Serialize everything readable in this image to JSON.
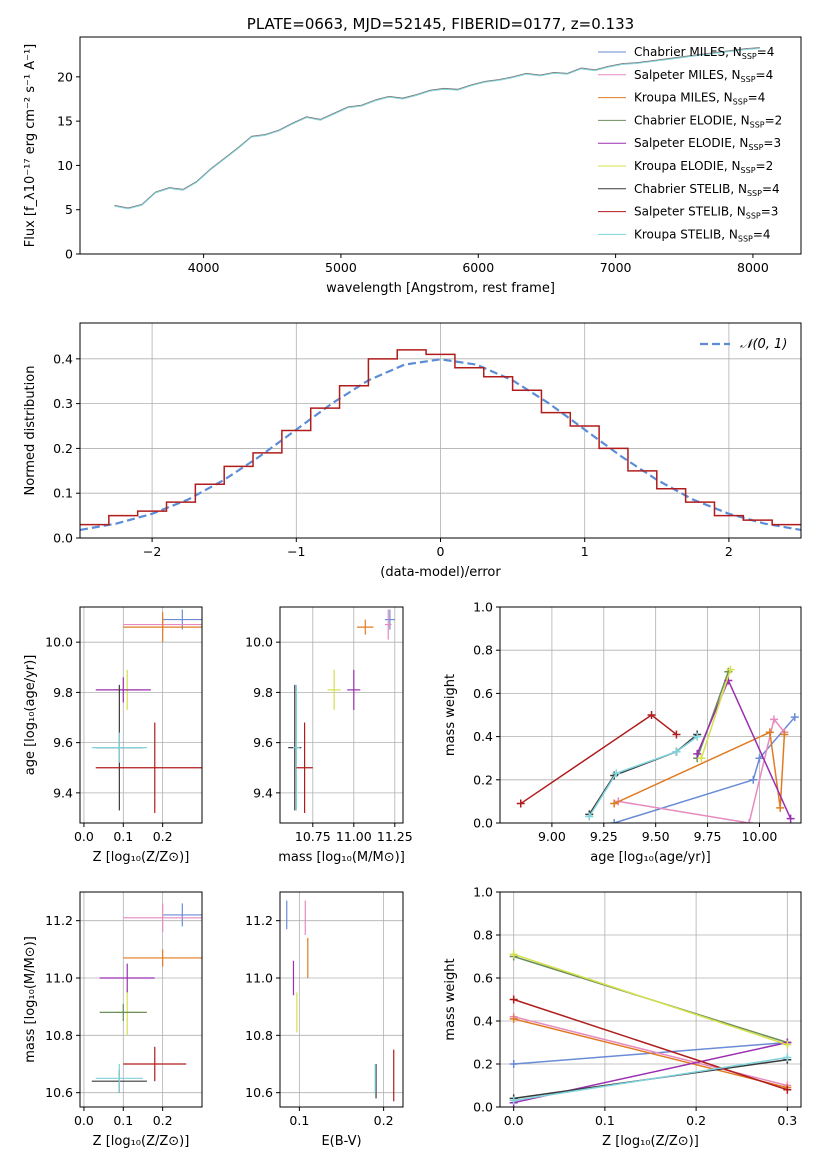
{
  "chart_data": [
    {
      "type": "line",
      "title": "PLATE=0663, MJD=52145, FIBERID=0177, z=0.133",
      "xlabel": "wavelength [Angstrom, rest frame]",
      "ylabel": "Flux [f_λ10⁻¹⁷ erg cm⁻² s⁻¹ A⁻¹]",
      "xlim": [
        3100,
        8350
      ],
      "ylim": [
        0,
        24.5
      ],
      "xticks": [
        "4000",
        "5000",
        "6000",
        "7000",
        "8000"
      ],
      "yticks": [
        "0",
        "5",
        "10",
        "15",
        "20"
      ],
      "grid": false,
      "legend_position": "top-right",
      "legend": [
        {
          "label": "Chabrier MILES, N",
          "sub": "SSP",
          "tail": "=4",
          "color": "#6a8bd6"
        },
        {
          "label": "Salpeter MILES, N",
          "sub": "SSP",
          "tail": "=4",
          "color": "#e68ac0"
        },
        {
          "label": "Kroupa MILES, N",
          "sub": "SSP",
          "tail": "=4",
          "color": "#e07b22"
        },
        {
          "label": "Chabrier ELODIE, N",
          "sub": "SSP",
          "tail": "=2",
          "color": "#6b8e5a"
        },
        {
          "label": "Salpeter ELODIE, N",
          "sub": "SSP",
          "tail": "=3",
          "color": "#9a2fb0"
        },
        {
          "label": "Kroupa ELODIE, N",
          "sub": "SSP",
          "tail": "=2",
          "color": "#d6e04a"
        },
        {
          "label": "Chabrier STELIB, N",
          "sub": "SSP",
          "tail": "=4",
          "color": "#3a3a3a"
        },
        {
          "label": "Salpeter STELIB, N",
          "sub": "SSP",
          "tail": "=3",
          "color": "#b01c1c"
        },
        {
          "label": "Kroupa STELIB, N",
          "sub": "SSP",
          "tail": "=4",
          "color": "#7fd3dc"
        }
      ],
      "series": [
        {
          "name": "data",
          "color": "#7a7a7a",
          "x": [
            3350,
            3450,
            3550,
            3650,
            3750,
            3850,
            3950,
            4050,
            4150,
            4250,
            4350,
            4450,
            4550,
            4650,
            4750,
            4850,
            4950,
            5050,
            5150,
            5250,
            5350,
            5450,
            5550,
            5650,
            5750,
            5850,
            5950,
            6050,
            6150,
            6250,
            6350,
            6450,
            6550,
            6650,
            6750,
            6850,
            6950,
            7050,
            7150,
            7250,
            7350,
            7450,
            7550,
            7650,
            7750,
            7850,
            7950,
            8050
          ],
          "y": [
            5.5,
            5.2,
            5.6,
            7.0,
            7.5,
            7.3,
            8.2,
            9.6,
            10.8,
            12.0,
            13.3,
            13.5,
            14.0,
            14.8,
            15.5,
            15.2,
            15.9,
            16.6,
            16.8,
            17.4,
            17.8,
            17.6,
            18.0,
            18.5,
            18.7,
            18.6,
            19.1,
            19.5,
            19.7,
            20.0,
            20.4,
            20.2,
            20.5,
            20.4,
            21.0,
            20.8,
            21.2,
            21.5,
            21.6,
            21.8,
            22.0,
            22.2,
            22.4,
            22.6,
            22.8,
            23.0,
            23.2,
            23.3
          ]
        },
        {
          "name": "model",
          "color": "#7fd3dc",
          "x": [
            3350,
            3450,
            3550,
            3650,
            3750,
            3850,
            3950,
            4050,
            4150,
            4250,
            4350,
            4450,
            4550,
            4650,
            4750,
            4850,
            4950,
            5050,
            5150,
            5250,
            5350,
            5450,
            5550,
            5650,
            5750,
            5850,
            5950,
            6050,
            6150,
            6250,
            6350,
            6450,
            6550,
            6650,
            6750,
            6850,
            6950,
            7050,
            7150,
            7250,
            7350,
            7450,
            7550,
            7650,
            7750,
            7850,
            7950,
            8050
          ],
          "y": [
            5.4,
            5.1,
            5.5,
            6.9,
            7.4,
            7.2,
            8.1,
            9.5,
            10.7,
            11.9,
            13.2,
            13.4,
            13.9,
            14.7,
            15.4,
            15.1,
            15.8,
            16.5,
            16.7,
            17.3,
            17.7,
            17.5,
            17.9,
            18.4,
            18.6,
            18.5,
            19.0,
            19.4,
            19.6,
            19.9,
            20.3,
            20.1,
            20.4,
            20.3,
            20.9,
            20.7,
            21.1,
            21.4,
            21.5,
            21.7,
            21.9,
            22.1,
            22.3,
            22.5,
            22.7,
            22.9,
            23.1,
            23.2
          ]
        }
      ]
    },
    {
      "type": "line",
      "title": "",
      "xlabel": "(data-model)/error",
      "ylabel": "Normed distribution",
      "xlim": [
        -2.5,
        2.5
      ],
      "ylim": [
        0,
        0.48
      ],
      "xticks": [
        "−2",
        "−1",
        "0",
        "1",
        "2"
      ],
      "yticks": [
        "0.0",
        "0.1",
        "0.2",
        "0.3",
        "0.4"
      ],
      "grid": true,
      "legend_position": "top-right",
      "legend": [
        {
          "label": "𝒩(0, 1)",
          "color": "#5b8dd6"
        }
      ],
      "series": [
        {
          "name": "𝒩(0, 1)",
          "color": "#5b8dd6",
          "style": "dashed",
          "x": [
            -2.5,
            -2.25,
            -2.0,
            -1.75,
            -1.5,
            -1.25,
            -1.0,
            -0.75,
            -0.5,
            -0.25,
            0.0,
            0.25,
            0.5,
            0.75,
            1.0,
            1.25,
            1.5,
            1.75,
            2.0,
            2.25,
            2.5
          ],
          "y": [
            0.018,
            0.032,
            0.054,
            0.086,
            0.13,
            0.183,
            0.242,
            0.301,
            0.352,
            0.387,
            0.399,
            0.387,
            0.352,
            0.301,
            0.242,
            0.183,
            0.13,
            0.086,
            0.054,
            0.032,
            0.018
          ]
        },
        {
          "name": "histogram",
          "color": "#b01c1c",
          "style": "step",
          "x": [
            -2.5,
            -2.3,
            -2.1,
            -1.9,
            -1.7,
            -1.5,
            -1.3,
            -1.1,
            -0.9,
            -0.7,
            -0.5,
            -0.3,
            -0.1,
            0.1,
            0.3,
            0.5,
            0.7,
            0.9,
            1.1,
            1.3,
            1.5,
            1.7,
            1.9,
            2.1,
            2.3,
            2.5
          ],
          "y": [
            0.03,
            0.05,
            0.06,
            0.08,
            0.12,
            0.16,
            0.19,
            0.24,
            0.29,
            0.34,
            0.4,
            0.42,
            0.41,
            0.38,
            0.36,
            0.33,
            0.28,
            0.25,
            0.2,
            0.15,
            0.11,
            0.08,
            0.05,
            0.04,
            0.03,
            0.02
          ]
        }
      ]
    },
    {
      "type": "scatter",
      "title": "",
      "xlabel": "Z [log₁₀(Z/Z⊙)]",
      "ylabel": "age  [log₁₀(age/yr)]",
      "xlim": [
        -0.01,
        0.3
      ],
      "ylim": [
        9.28,
        10.14
      ],
      "xticks": [
        "0.0",
        "0.1",
        "0.2"
      ],
      "yticks": [
        "9.4",
        "9.6",
        "9.8",
        "10.0"
      ],
      "grid": true,
      "points": [
        {
          "x": 0.25,
          "y": 10.09,
          "xerr": 0.05,
          "yerr": 0.04,
          "color": "#6a8bd6"
        },
        {
          "x": 0.2,
          "y": 10.07,
          "xerr": 0.1,
          "yerr": 0.03,
          "color": "#e68ac0"
        },
        {
          "x": 0.2,
          "y": 10.06,
          "xerr": 0.1,
          "yerr": 0.06,
          "color": "#e07b22"
        },
        {
          "x": 0.11,
          "y": 9.81,
          "xerr": 0.03,
          "yerr": 0.08,
          "color": "#d6e04a"
        },
        {
          "x": 0.1,
          "y": 9.81,
          "xerr": 0.07,
          "yerr": 0.05,
          "color": "#9a2fb0"
        },
        {
          "x": 0.09,
          "y": 9.58,
          "xerr": 0.06,
          "yerr": 0.25,
          "color": "#3a3a3a"
        },
        {
          "x": 0.09,
          "y": 9.58,
          "xerr": 0.07,
          "yerr": 0.06,
          "color": "#7fd3dc"
        },
        {
          "x": 0.18,
          "y": 9.5,
          "xerr": 0.15,
          "yerr": 0.18,
          "color": "#b01c1c"
        }
      ]
    },
    {
      "type": "scatter",
      "title": "",
      "xlabel": "mass [log₁₀(M/M⊙)]",
      "ylabel": "",
      "xlim": [
        10.55,
        11.3
      ],
      "ylim": [
        9.28,
        10.14
      ],
      "xticks": [
        "10.75",
        "11.00",
        "11.25"
      ],
      "yticks": [
        "9.4",
        "9.6",
        "9.8",
        "10.0"
      ],
      "grid": true,
      "points": [
        {
          "x": 11.22,
          "y": 10.09,
          "xerr": 0.03,
          "yerr": 0.04,
          "color": "#6a8bd6"
        },
        {
          "x": 11.21,
          "y": 10.07,
          "xerr": 0.02,
          "yerr": 0.06,
          "color": "#e68ac0"
        },
        {
          "x": 11.07,
          "y": 10.06,
          "xerr": 0.05,
          "yerr": 0.03,
          "color": "#e07b22"
        },
        {
          "x": 10.88,
          "y": 9.81,
          "xerr": 0.04,
          "yerr": 0.08,
          "color": "#d6e04a"
        },
        {
          "x": 11.0,
          "y": 9.81,
          "xerr": 0.04,
          "yerr": 0.08,
          "color": "#9a2fb0"
        },
        {
          "x": 10.64,
          "y": 9.58,
          "xerr": 0.04,
          "yerr": 0.25,
          "color": "#3a3a3a"
        },
        {
          "x": 10.65,
          "y": 9.58,
          "xerr": 0.02,
          "yerr": 0.25,
          "color": "#7fd3dc"
        },
        {
          "x": 10.7,
          "y": 9.5,
          "xerr": 0.05,
          "yerr": 0.18,
          "color": "#b01c1c"
        }
      ]
    },
    {
      "type": "line",
      "title": "",
      "xlabel": "age  [log₁₀(age/yr)]",
      "ylabel": "mass weight",
      "xlim": [
        8.75,
        10.2
      ],
      "ylim": [
        0,
        1.0
      ],
      "xticks": [
        "9.00",
        "9.25",
        "9.50",
        "9.75",
        "10.00"
      ],
      "yticks": [
        "0.0",
        "0.2",
        "0.4",
        "0.6",
        "0.8",
        "1.0"
      ],
      "grid": true,
      "series": [
        {
          "name": "Chabrier MILES",
          "color": "#6a8bd6",
          "x": [
            9.3,
            9.97,
            10.0,
            10.17
          ],
          "y": [
            0.0,
            0.2,
            0.3,
            0.49
          ]
        },
        {
          "name": "Salpeter MILES",
          "color": "#e68ac0",
          "x": [
            9.32,
            9.95,
            10.07,
            10.12
          ],
          "y": [
            0.1,
            0.0,
            0.48,
            0.42
          ]
        },
        {
          "name": "Kroupa MILES",
          "color": "#e07b22",
          "x": [
            9.3,
            10.05,
            10.1,
            10.12
          ],
          "y": [
            0.09,
            0.42,
            0.07,
            0.41
          ]
        },
        {
          "name": "Chabrier ELODIE",
          "color": "#6b8e5a",
          "x": [
            9.7,
            9.85
          ],
          "y": [
            0.3,
            0.7
          ]
        },
        {
          "name": "Salpeter ELODIE",
          "color": "#9a2fb0",
          "x": [
            9.7,
            9.85,
            10.15
          ],
          "y": [
            0.32,
            0.66,
            0.02
          ]
        },
        {
          "name": "Kroupa ELODIE",
          "color": "#d6e04a",
          "x": [
            9.72,
            9.86
          ],
          "y": [
            0.3,
            0.71
          ]
        },
        {
          "name": "Chabrier STELIB",
          "color": "#3a3a3a",
          "x": [
            9.18,
            9.3,
            9.6,
            9.7
          ],
          "y": [
            0.04,
            0.22,
            0.33,
            0.41
          ]
        },
        {
          "name": "Salpeter STELIB",
          "color": "#b01c1c",
          "x": [
            8.85,
            9.48,
            9.6
          ],
          "y": [
            0.09,
            0.5,
            0.41
          ]
        },
        {
          "name": "Kroupa STELIB",
          "color": "#7fd3dc",
          "x": [
            9.18,
            9.31,
            9.6,
            9.7
          ],
          "y": [
            0.03,
            0.23,
            0.33,
            0.4
          ]
        }
      ]
    },
    {
      "type": "scatter",
      "title": "",
      "xlabel": "Z [log₁₀(Z/Z⊙)]",
      "ylabel": "mass [log₁₀(M/M⊙)]",
      "xlim": [
        -0.01,
        0.3
      ],
      "ylim": [
        10.55,
        11.3
      ],
      "xticks": [
        "0.0",
        "0.1",
        "0.2"
      ],
      "yticks": [
        "10.6",
        "10.8",
        "11.0",
        "11.2"
      ],
      "grid": true,
      "points": [
        {
          "x": 0.25,
          "y": 11.22,
          "xerr": 0.05,
          "yerr": 0.04,
          "color": "#6a8bd6"
        },
        {
          "x": 0.2,
          "y": 11.21,
          "xerr": 0.1,
          "yerr": 0.05,
          "color": "#e68ac0"
        },
        {
          "x": 0.2,
          "y": 11.07,
          "xerr": 0.1,
          "yerr": 0.03,
          "color": "#e07b22"
        },
        {
          "x": 0.11,
          "y": 10.88,
          "xerr": 0.03,
          "yerr": 0.08,
          "color": "#d6e04a"
        },
        {
          "x": 0.1,
          "y": 10.88,
          "xerr": 0.06,
          "yerr": 0.03,
          "color": "#6b8e5a"
        },
        {
          "x": 0.11,
          "y": 11.0,
          "xerr": 0.07,
          "yerr": 0.05,
          "color": "#9a2fb0"
        },
        {
          "x": 0.09,
          "y": 10.64,
          "xerr": 0.07,
          "yerr": 0.04,
          "color": "#3a3a3a"
        },
        {
          "x": 0.09,
          "y": 10.65,
          "xerr": 0.06,
          "yerr": 0.05,
          "color": "#7fd3dc"
        },
        {
          "x": 0.18,
          "y": 10.7,
          "xerr": 0.08,
          "yerr": 0.06,
          "color": "#b01c1c"
        }
      ]
    },
    {
      "type": "scatter",
      "title": "",
      "xlabel": "E(B-V)",
      "ylabel": "",
      "xlim": [
        0.077,
        0.223
      ],
      "ylim": [
        10.55,
        11.3
      ],
      "xticks": [
        "0.1",
        "0.2"
      ],
      "yticks": [
        "10.6",
        "10.8",
        "11.0",
        "11.2"
      ],
      "grid": true,
      "points": [
        {
          "x": 0.085,
          "y": 11.22,
          "yerr": 0.05,
          "color": "#6a8bd6"
        },
        {
          "x": 0.107,
          "y": 11.21,
          "yerr": 0.06,
          "color": "#e68ac0"
        },
        {
          "x": 0.11,
          "y": 11.07,
          "yerr": 0.07,
          "color": "#e07b22"
        },
        {
          "x": 0.097,
          "y": 10.88,
          "yerr": 0.07,
          "color": "#d6e04a"
        },
        {
          "x": 0.093,
          "y": 11.0,
          "yerr": 0.06,
          "color": "#9a2fb0"
        },
        {
          "x": 0.191,
          "y": 10.64,
          "yerr": 0.06,
          "color": "#3a3a3a"
        },
        {
          "x": 0.19,
          "y": 10.65,
          "yerr": 0.05,
          "color": "#7fd3dc"
        },
        {
          "x": 0.212,
          "y": 10.66,
          "yerr": 0.09,
          "color": "#b01c1c"
        }
      ]
    },
    {
      "type": "line",
      "title": "",
      "xlabel": "Z [log₁₀(Z/Z⊙)]",
      "ylabel": "mass weight",
      "xlim": [
        -0.015,
        0.315
      ],
      "ylim": [
        0,
        1.0
      ],
      "xticks": [
        "0.0",
        "0.1",
        "0.2",
        "0.3"
      ],
      "yticks": [
        "0.0",
        "0.2",
        "0.4",
        "0.6",
        "0.8",
        "1.0"
      ],
      "grid": true,
      "series": [
        {
          "name": "Chabrier MILES",
          "color": "#6a8bd6",
          "x": [
            0,
            0.3
          ],
          "y": [
            0.2,
            0.3
          ]
        },
        {
          "name": "Salpeter MILES",
          "color": "#e68ac0",
          "x": [
            0,
            0.3
          ],
          "y": [
            0.42,
            0.1
          ]
        },
        {
          "name": "Kroupa MILES",
          "color": "#e07b22",
          "x": [
            0,
            0.3
          ],
          "y": [
            0.41,
            0.09
          ]
        },
        {
          "name": "Chabrier ELODIE",
          "color": "#6b8e5a",
          "x": [
            0,
            0.3
          ],
          "y": [
            0.7,
            0.3
          ]
        },
        {
          "name": "Salpeter ELODIE",
          "color": "#9a2fb0",
          "x": [
            0,
            0.3
          ],
          "y": [
            0.02,
            0.3
          ]
        },
        {
          "name": "Kroupa ELODIE",
          "color": "#d6e04a",
          "x": [
            0,
            0.3
          ],
          "y": [
            0.71,
            0.29
          ]
        },
        {
          "name": "Chabrier STELIB",
          "color": "#3a3a3a",
          "x": [
            0,
            0.3
          ],
          "y": [
            0.04,
            0.22
          ]
        },
        {
          "name": "Salpeter STELIB",
          "color": "#b01c1c",
          "x": [
            0,
            0.3
          ],
          "y": [
            0.5,
            0.08
          ]
        },
        {
          "name": "Kroupa STELIB",
          "color": "#7fd3dc",
          "x": [
            0,
            0.3
          ],
          "y": [
            0.03,
            0.23
          ]
        }
      ]
    }
  ]
}
